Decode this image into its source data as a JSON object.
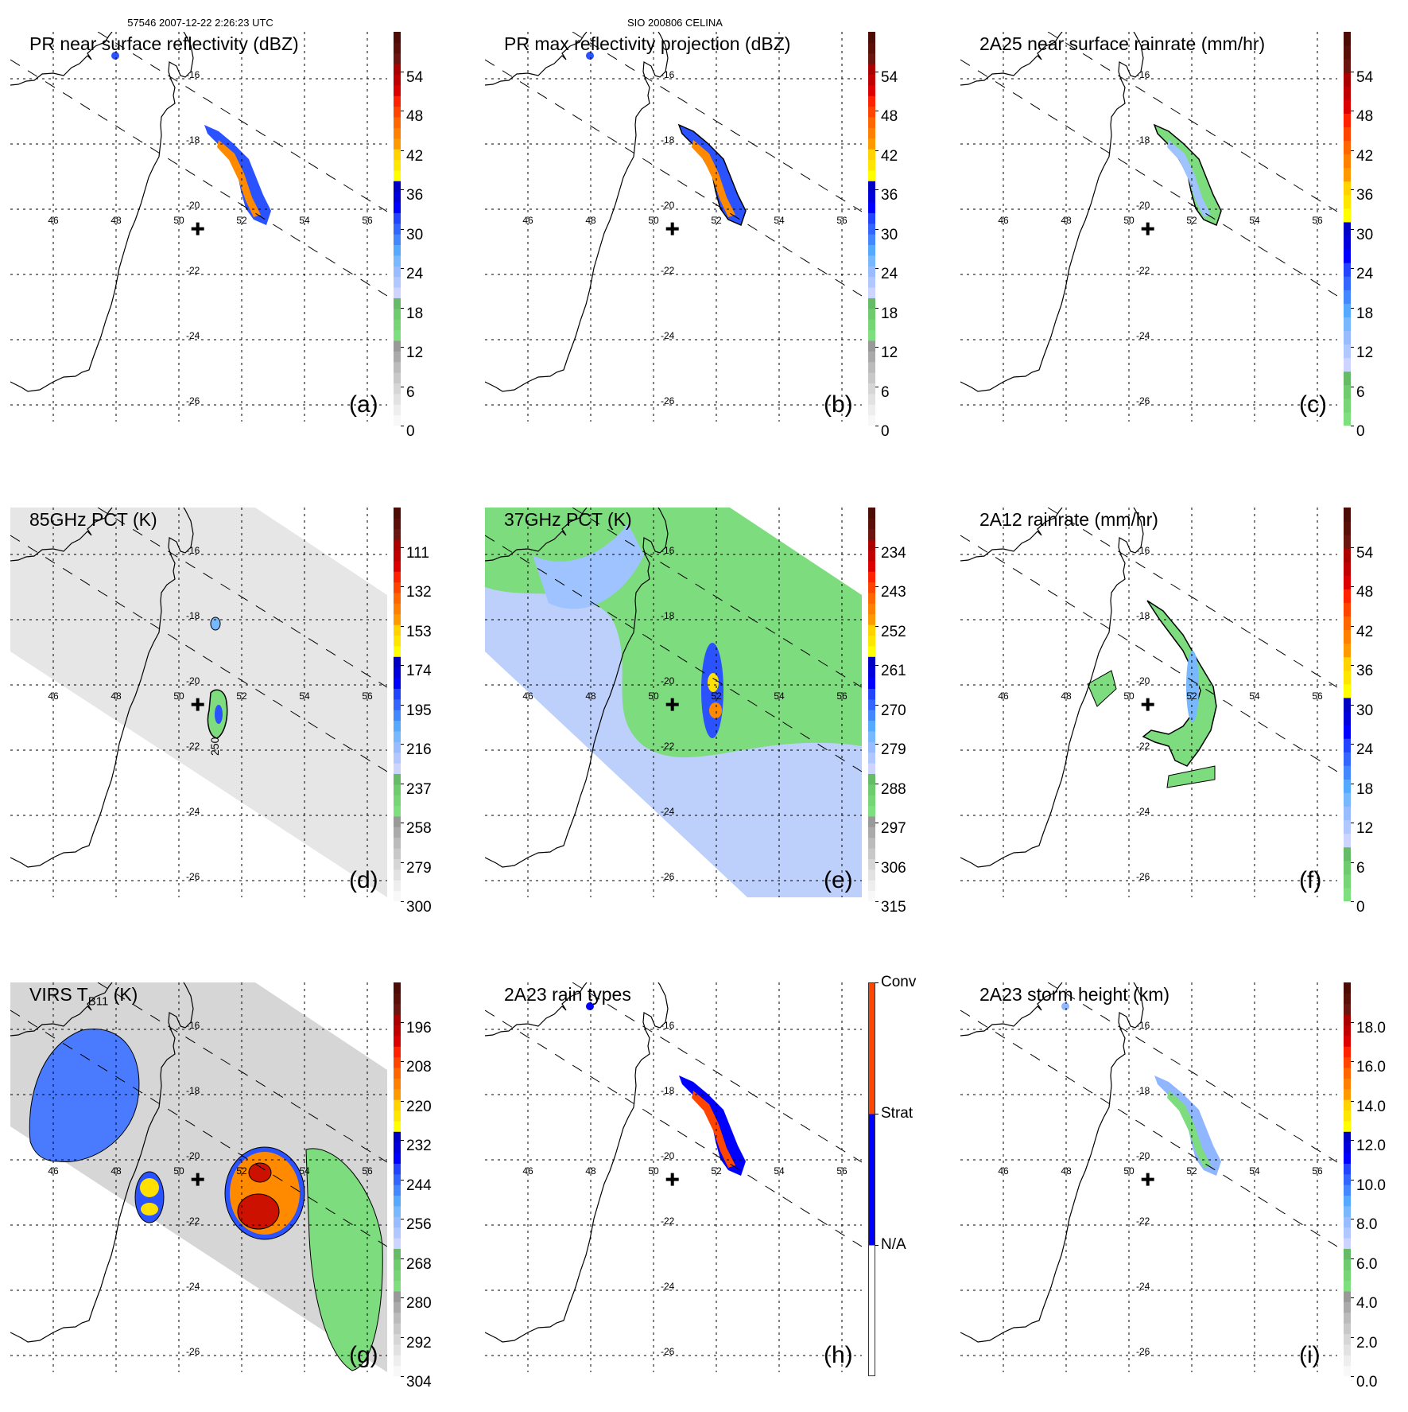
{
  "header": {
    "orbit_time": "57546 2007-12-22 2:26:23 UTC",
    "storm": "SIO 200806 CELINA"
  },
  "colors": {
    "coastline": "#000000",
    "swath_gray": "#d6d6d6",
    "green": "#7ddc7d",
    "light_blue": "#bcd0fb",
    "blue": "#2a52ff",
    "yellow": "#ffe000",
    "orange": "#ff8a00",
    "red": "#cc1100",
    "conv": "#ff4500",
    "strat": "#0000ff"
  },
  "colorscales": {
    "dbz": [
      "#f8f8f8",
      "#eeeeee",
      "#e2e2e2",
      "#d6d6d6",
      "#c8c8c8",
      "#bbbbbb",
      "#aaaaaa",
      "#999999",
      "#7ddf7d",
      "#76d676",
      "#6ecb6e",
      "#66bb66",
      "#ccd4ff",
      "#b0c8ff",
      "#99bbff",
      "#77b8ff",
      "#55aaff",
      "#4488ff",
      "#3366ff",
      "#2244ff",
      "#0000ff",
      "#0000dd",
      "#0000c4",
      "#ffff00",
      "#ffe600",
      "#ffd200",
      "#ff9900",
      "#ff8000",
      "#ff6600",
      "#ff4400",
      "#ff2200",
      "#dd0000",
      "#c00000",
      "#aa0000",
      "#6b1510",
      "#5a1008",
      "#4e0c06"
    ],
    "rain": [
      "#7ddf7d",
      "#76d676",
      "#6ecb6e",
      "#66bb66",
      "#ccd4ff",
      "#b0c8ff",
      "#99bbff",
      "#77b8ff",
      "#55aaff",
      "#4488ff",
      "#3366ff",
      "#2244ff",
      "#0000ff",
      "#0000dd",
      "#0000c4",
      "#ffff00",
      "#ffe600",
      "#ffd200",
      "#ff9900",
      "#ff8000",
      "#ff6600",
      "#ff4400",
      "#ff2200",
      "#dd0000",
      "#c00000",
      "#aa0000",
      "#6b1510",
      "#5a1008",
      "#4e0c06"
    ],
    "raintype": [
      "#ffffff",
      "#0000ff",
      "#ff4500"
    ]
  },
  "map": {
    "lon_labels": [
      "46",
      "48",
      "50",
      "52",
      "54",
      "56"
    ],
    "lat_labels": [
      "-16",
      "-18",
      "-20",
      "-22",
      "-24",
      "-26"
    ],
    "storm_center": {
      "lon": 50.6,
      "lat": -20.6
    }
  },
  "panels": [
    {
      "id": "a",
      "title": "PR near surface reflectivity (dBZ)",
      "letter": "(a)",
      "scale": "dbz",
      "range": [
        0,
        60
      ],
      "ticks": [
        "54",
        "48",
        "42",
        "36",
        "30",
        "24",
        "18",
        "12",
        "6",
        "0"
      ],
      "tick_values": [
        54,
        48,
        42,
        36,
        30,
        24,
        18,
        12,
        6,
        0
      ]
    },
    {
      "id": "b",
      "title": "PR max reflectivity projection (dBZ)",
      "letter": "(b)",
      "scale": "dbz",
      "range": [
        0,
        60
      ],
      "ticks": [
        "54",
        "48",
        "42",
        "36",
        "30",
        "24",
        "18",
        "12",
        "6",
        "0"
      ],
      "tick_values": [
        54,
        48,
        42,
        36,
        30,
        24,
        18,
        12,
        6,
        0
      ]
    },
    {
      "id": "c",
      "title": "2A25 near surface rainrate (mm/hr)",
      "letter": "(c)",
      "scale": "rain",
      "range": [
        0,
        60
      ],
      "ticks": [
        "54",
        "48",
        "42",
        "36",
        "30",
        "24",
        "18",
        "12",
        "6",
        "0"
      ],
      "tick_values": [
        54,
        48,
        42,
        36,
        30,
        24,
        18,
        12,
        6,
        0
      ]
    },
    {
      "id": "d",
      "title": "85GHz PCT (K)",
      "letter": "(d)",
      "scale": "dbz",
      "range": [
        300,
        90
      ],
      "contour_label": "250",
      "ticks": [
        "111",
        "132",
        "153",
        "174",
        "195",
        "216",
        "237",
        "258",
        "279",
        "300"
      ],
      "tick_values": [
        111,
        132,
        153,
        174,
        195,
        216,
        237,
        258,
        279,
        300
      ]
    },
    {
      "id": "e",
      "title": "37GHz PCT (K)",
      "letter": "(e)",
      "scale": "dbz",
      "range": [
        315,
        225
      ],
      "ticks": [
        "234",
        "243",
        "252",
        "261",
        "270",
        "279",
        "288",
        "297",
        "306",
        "315"
      ],
      "tick_values": [
        234,
        243,
        252,
        261,
        270,
        279,
        288,
        297,
        306,
        315
      ]
    },
    {
      "id": "f",
      "title": "2A12 rainrate (mm/hr)",
      "letter": "(f)",
      "scale": "rain",
      "range": [
        0,
        60
      ],
      "ticks": [
        "54",
        "48",
        "42",
        "36",
        "30",
        "24",
        "18",
        "12",
        "6",
        "0"
      ],
      "tick_values": [
        54,
        48,
        42,
        36,
        30,
        24,
        18,
        12,
        6,
        0
      ]
    },
    {
      "id": "g",
      "title": "VIRS T",
      "title_sub": "B11",
      "title_end": " (K)",
      "letter": "(g)",
      "scale": "dbz",
      "range": [
        304,
        184
      ],
      "ticks": [
        "196",
        "208",
        "220",
        "232",
        "244",
        "256",
        "268",
        "280",
        "292",
        "304"
      ],
      "tick_values": [
        196,
        208,
        220,
        232,
        244,
        256,
        268,
        280,
        292,
        304
      ]
    },
    {
      "id": "h",
      "title": "2A23 rain types",
      "letter": "(h)",
      "scale": "raintype",
      "range": [
        0,
        3
      ],
      "ticks": [
        "Conv",
        "Strat",
        "N/A"
      ],
      "tick_values": [
        3,
        2,
        1
      ]
    },
    {
      "id": "i",
      "title": "2A23 storm height (km)",
      "letter": "(i)",
      "scale": "dbz",
      "range": [
        0,
        20
      ],
      "ticks": [
        "18.0",
        "16.0",
        "14.0",
        "12.0",
        "10.0",
        "8.0",
        "6.0",
        "4.0",
        "2.0",
        "0.0"
      ],
      "tick_values": [
        18,
        16,
        14,
        12,
        10,
        8,
        6,
        4,
        2,
        0
      ]
    }
  ]
}
